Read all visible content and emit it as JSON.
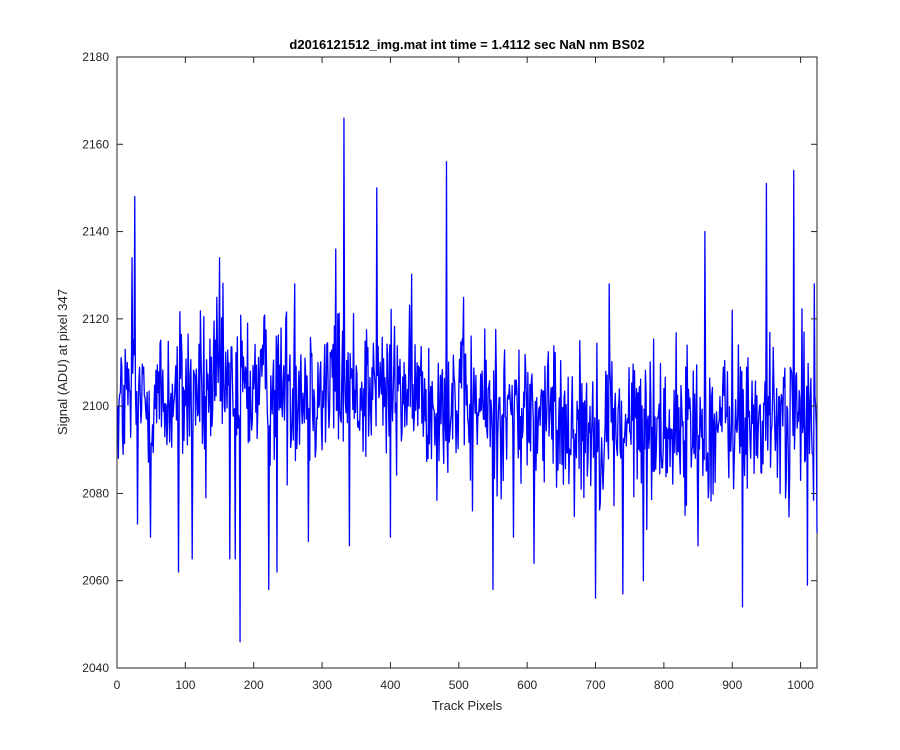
{
  "chart_data": {
    "type": "line",
    "title": "d2016121512_img.mat int time = 1.4112 sec  NaN nm BS02",
    "xlabel": "Track Pixels",
    "ylabel": "Signal (ADU) at pixel 347",
    "xlim": [
      0,
      1024
    ],
    "ylim": [
      2040,
      2180
    ],
    "xticks": [
      "0",
      "100",
      "200",
      "300",
      "400",
      "500",
      "600",
      "700",
      "800",
      "900",
      "1000"
    ],
    "yticks": [
      "2040",
      "2060",
      "2080",
      "2100",
      "2120",
      "2140",
      "2160",
      "2180"
    ],
    "grid": false,
    "legend": "none",
    "series": [
      {
        "color": "#0000ff",
        "x": [
          1,
          15,
          22,
          26,
          30,
          49,
          70,
          90,
          110,
          130,
          150,
          165,
          173,
          180,
          200,
          222,
          234,
          260,
          280,
          300,
          320,
          332,
          340,
          356,
          380,
          400,
          420,
          455,
          482,
          500,
          520,
          550,
          580,
          610,
          650,
          700,
          720,
          740,
          760,
          770,
          800,
          830,
          850,
          860,
          880,
          900,
          915,
          930,
          950,
          970,
          990,
          1000,
          1010,
          1020,
          1024
        ],
        "y": [
          2100,
          2110,
          2134,
          2148,
          2073,
          2070,
          2093,
          2062,
          2065,
          2079,
          2134,
          2065,
          2065,
          2046,
          2104,
          2058,
          2062,
          2128,
          2069,
          2090,
          2136,
          2166,
          2068,
          2104,
          2150,
          2070,
          2110,
          2088,
          2156,
          2104,
          2076,
          2058,
          2070,
          2064,
          2098,
          2056,
          2128,
          2057,
          2104,
          2060,
          2104,
          2092,
          2068,
          2140,
          2096,
          2122,
          2054,
          2096,
          2151,
          2080,
          2154,
          2083,
          2059,
          2128,
          2071
        ]
      }
    ]
  }
}
